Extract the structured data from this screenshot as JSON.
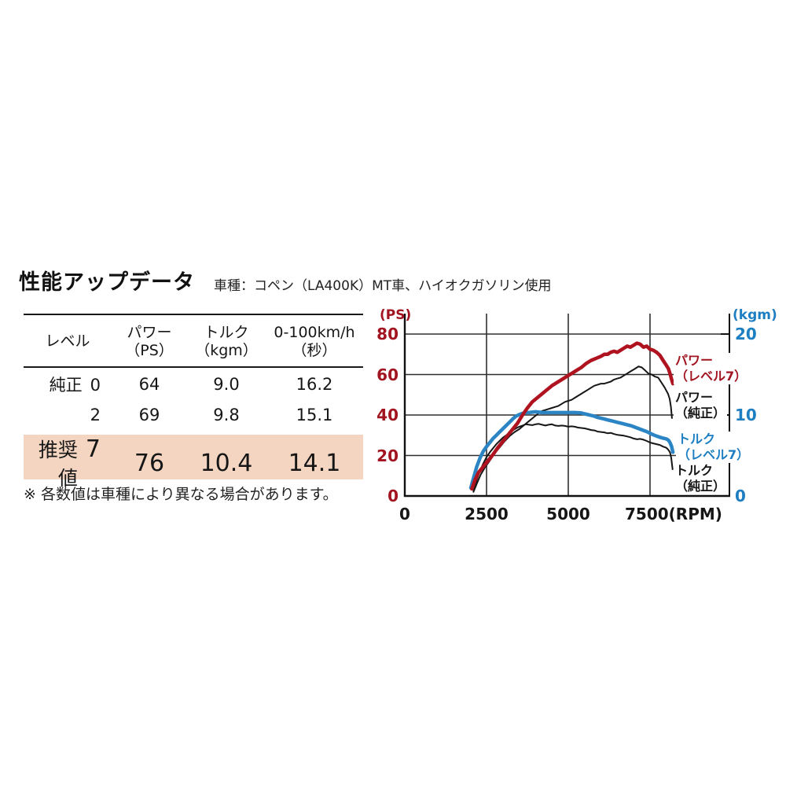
{
  "page": {
    "title": "性能アップデータ",
    "subtitle": "車種：コペン（LA400K）MT車、ハイオクガソリン使用",
    "footnote": "※ 各数値は車種により異なる場合があります。"
  },
  "table": {
    "col_headers": [
      {
        "line1": "レベル",
        "line2": ""
      },
      {
        "line1": "パワー",
        "line2": "（PS）"
      },
      {
        "line1": "トルク",
        "line2": "（kgm）"
      },
      {
        "line1": "0-100km/h",
        "line2": "（秒）"
      }
    ],
    "rows": [
      {
        "label": "純正",
        "level": "0",
        "power": "64",
        "torque": "9.0",
        "accel": "16.2"
      },
      {
        "label": "",
        "level": "2",
        "power": "69",
        "torque": "9.8",
        "accel": "15.1"
      },
      {
        "label": "推奨値",
        "level": "7",
        "power": "76",
        "torque": "10.4",
        "accel": "14.1"
      }
    ],
    "highlight_color": "#f3d5c1"
  },
  "chart_data": {
    "type": "line",
    "x_axis": {
      "ticks": [
        0,
        2500,
        5000,
        7500
      ],
      "tick_labels": [
        "0",
        "2500",
        "5000",
        "7500(RPM)"
      ],
      "range": [
        0,
        9930
      ]
    },
    "left_axis": {
      "label": "(PS)",
      "ticks": [
        0,
        20,
        40,
        60,
        80
      ],
      "range": [
        0,
        89.7
      ],
      "color": "#a11420"
    },
    "right_axis": {
      "label": "(kgm)",
      "ticks": [
        0,
        10,
        20
      ],
      "range": [
        0,
        22.4
      ],
      "color": "#1d7ec2"
    },
    "grid": true,
    "series": [
      {
        "name": "パワー（純正）",
        "axis": "left",
        "unit": "PS",
        "color": "#161616",
        "width": 2,
        "points": [
          [
            2100,
            2
          ],
          [
            2200,
            6
          ],
          [
            2320,
            10.5
          ],
          [
            2450,
            14
          ],
          [
            2600,
            17.5
          ],
          [
            2750,
            21
          ],
          [
            2900,
            24
          ],
          [
            3050,
            27
          ],
          [
            3200,
            29.5
          ],
          [
            3350,
            31.5
          ],
          [
            3500,
            33
          ],
          [
            3650,
            35
          ],
          [
            3800,
            37
          ],
          [
            3950,
            39
          ],
          [
            4100,
            41
          ],
          [
            4200,
            42
          ],
          [
            4300,
            42.5
          ],
          [
            4400,
            43
          ],
          [
            4500,
            43.5
          ],
          [
            4600,
            44
          ],
          [
            4700,
            44.5
          ],
          [
            4800,
            45.5
          ],
          [
            4900,
            46.5
          ],
          [
            5000,
            47
          ],
          [
            5100,
            47.5
          ],
          [
            5200,
            48.5
          ],
          [
            5300,
            49.5
          ],
          [
            5400,
            50.5
          ],
          [
            5500,
            51.5
          ],
          [
            5600,
            52.5
          ],
          [
            5700,
            53.5
          ],
          [
            5800,
            54.5
          ],
          [
            5900,
            55
          ],
          [
            6000,
            55.5
          ],
          [
            6100,
            55.5
          ],
          [
            6200,
            56
          ],
          [
            6300,
            56.5
          ],
          [
            6400,
            57.5
          ],
          [
            6500,
            58
          ],
          [
            6600,
            58.5
          ],
          [
            6700,
            59.5
          ],
          [
            6800,
            60.5
          ],
          [
            6900,
            61.5
          ],
          [
            7000,
            62.5
          ],
          [
            7100,
            63.5
          ],
          [
            7150,
            64
          ],
          [
            7250,
            63.5
          ],
          [
            7350,
            62
          ],
          [
            7450,
            60.5
          ],
          [
            7550,
            60
          ],
          [
            7650,
            59
          ],
          [
            7750,
            58.5
          ],
          [
            7850,
            56
          ],
          [
            7950,
            53.5
          ],
          [
            8050,
            50.5
          ],
          [
            8100,
            48
          ],
          [
            8140,
            44
          ],
          [
            8170,
            38.5
          ]
        ]
      },
      {
        "name": "トルク（純正）",
        "axis": "right",
        "unit": "kgm",
        "color": "#161616",
        "width": 2,
        "points": [
          [
            2100,
            0.6
          ],
          [
            2200,
            2.0
          ],
          [
            2300,
            3.1
          ],
          [
            2400,
            4.0
          ],
          [
            2500,
            4.8
          ],
          [
            2600,
            5.4
          ],
          [
            2700,
            5.9
          ],
          [
            2800,
            6.4
          ],
          [
            2900,
            6.8
          ],
          [
            3000,
            7.2
          ],
          [
            3100,
            7.5
          ],
          [
            3200,
            7.8
          ],
          [
            3300,
            8.1
          ],
          [
            3400,
            8.35
          ],
          [
            3500,
            8.55
          ],
          [
            3600,
            8.7
          ],
          [
            3700,
            8.85
          ],
          [
            3800,
            8.8
          ],
          [
            3900,
            8.75
          ],
          [
            4000,
            8.85
          ],
          [
            4100,
            8.9
          ],
          [
            4200,
            8.8
          ],
          [
            4300,
            8.7
          ],
          [
            4400,
            8.8
          ],
          [
            4500,
            8.85
          ],
          [
            4600,
            8.7
          ],
          [
            4700,
            8.65
          ],
          [
            4800,
            8.7
          ],
          [
            4900,
            8.65
          ],
          [
            5000,
            8.55
          ],
          [
            5100,
            8.6
          ],
          [
            5200,
            8.55
          ],
          [
            5300,
            8.45
          ],
          [
            5400,
            8.4
          ],
          [
            5500,
            8.35
          ],
          [
            5600,
            8.25
          ],
          [
            5700,
            8.15
          ],
          [
            5800,
            8.1
          ],
          [
            5900,
            7.95
          ],
          [
            6000,
            7.9
          ],
          [
            6100,
            7.85
          ],
          [
            6200,
            7.75
          ],
          [
            6300,
            7.8
          ],
          [
            6400,
            7.65
          ],
          [
            6500,
            7.55
          ],
          [
            6600,
            7.5
          ],
          [
            6700,
            7.45
          ],
          [
            6800,
            7.35
          ],
          [
            6900,
            7.25
          ],
          [
            7000,
            7.1
          ],
          [
            7100,
            7.0
          ],
          [
            7200,
            7.05
          ],
          [
            7300,
            6.95
          ],
          [
            7400,
            6.8
          ],
          [
            7500,
            6.6
          ],
          [
            7600,
            6.5
          ],
          [
            7700,
            6.4
          ],
          [
            7800,
            6.3
          ],
          [
            7900,
            6.1
          ],
          [
            8000,
            5.95
          ],
          [
            8060,
            5.7
          ],
          [
            8110,
            5.4
          ],
          [
            8150,
            4.7
          ],
          [
            8190,
            3.3
          ]
        ]
      },
      {
        "name": "トルク（レベル7）",
        "axis": "right",
        "unit": "kgm",
        "color": "#2b85c4",
        "width": 4.5,
        "points": [
          [
            2020,
            1.0
          ],
          [
            2100,
            2.2
          ],
          [
            2200,
            3.6
          ],
          [
            2300,
            4.7
          ],
          [
            2400,
            5.5
          ],
          [
            2500,
            6.1
          ],
          [
            2600,
            6.6
          ],
          [
            2700,
            7.1
          ],
          [
            2800,
            7.5
          ],
          [
            2900,
            7.9
          ],
          [
            3000,
            8.3
          ],
          [
            3100,
            8.7
          ],
          [
            3200,
            9.1
          ],
          [
            3300,
            9.5
          ],
          [
            3400,
            9.85
          ],
          [
            3500,
            10.05
          ],
          [
            3600,
            10.2
          ],
          [
            3700,
            10.3
          ],
          [
            3800,
            10.3
          ],
          [
            3900,
            10.35
          ],
          [
            4000,
            10.4
          ],
          [
            4100,
            10.35
          ],
          [
            4200,
            10.3
          ],
          [
            4400,
            10.3
          ],
          [
            4600,
            10.3
          ],
          [
            4800,
            10.3
          ],
          [
            5000,
            10.3
          ],
          [
            5200,
            10.3
          ],
          [
            5400,
            10.25
          ],
          [
            5500,
            10.15
          ],
          [
            5600,
            10.05
          ],
          [
            5700,
            9.95
          ],
          [
            5800,
            9.85
          ],
          [
            5900,
            9.7
          ],
          [
            6000,
            9.6
          ],
          [
            6100,
            9.5
          ],
          [
            6200,
            9.4
          ],
          [
            6300,
            9.3
          ],
          [
            6400,
            9.2
          ],
          [
            6500,
            9.1
          ],
          [
            6600,
            9.0
          ],
          [
            6700,
            8.9
          ],
          [
            6800,
            8.8
          ],
          [
            6900,
            8.7
          ],
          [
            7000,
            8.55
          ],
          [
            7100,
            8.4
          ],
          [
            7200,
            8.25
          ],
          [
            7300,
            8.1
          ],
          [
            7400,
            7.95
          ],
          [
            7500,
            7.75
          ],
          [
            7600,
            7.55
          ],
          [
            7700,
            7.4
          ],
          [
            7800,
            7.25
          ],
          [
            7900,
            7.15
          ],
          [
            8000,
            7.05
          ],
          [
            8060,
            6.9
          ],
          [
            8110,
            6.6
          ],
          [
            8160,
            6.1
          ],
          [
            8200,
            5.4
          ]
        ]
      },
      {
        "name": "パワー（レベル7）",
        "axis": "left",
        "unit": "PS",
        "color": "#b01320",
        "width": 4.5,
        "points": [
          [
            2050,
            3.5
          ],
          [
            2150,
            8
          ],
          [
            2250,
            11.5
          ],
          [
            2400,
            14.5
          ],
          [
            2550,
            17.5
          ],
          [
            2700,
            20.5
          ],
          [
            2850,
            24
          ],
          [
            3000,
            27
          ],
          [
            3150,
            30
          ],
          [
            3300,
            33
          ],
          [
            3450,
            36
          ],
          [
            3600,
            40
          ],
          [
            3750,
            43.5
          ],
          [
            3900,
            46.5
          ],
          [
            4050,
            48.5
          ],
          [
            4200,
            50.5
          ],
          [
            4350,
            52.5
          ],
          [
            4500,
            54.5
          ],
          [
            4650,
            56
          ],
          [
            4800,
            57.5
          ],
          [
            4950,
            59
          ],
          [
            5100,
            60.5
          ],
          [
            5250,
            62
          ],
          [
            5400,
            63.5
          ],
          [
            5550,
            65.5
          ],
          [
            5700,
            67
          ],
          [
            5850,
            68
          ],
          [
            6000,
            69
          ],
          [
            6100,
            70
          ],
          [
            6200,
            70
          ],
          [
            6300,
            71
          ],
          [
            6400,
            71.5
          ],
          [
            6500,
            71
          ],
          [
            6600,
            72
          ],
          [
            6700,
            73
          ],
          [
            6800,
            74
          ],
          [
            6900,
            73.5
          ],
          [
            7000,
            74.5
          ],
          [
            7100,
            75.5
          ],
          [
            7200,
            75
          ],
          [
            7300,
            73.5
          ],
          [
            7400,
            74
          ],
          [
            7500,
            72.5
          ],
          [
            7600,
            72
          ],
          [
            7700,
            71
          ],
          [
            7800,
            69.5
          ],
          [
            7900,
            67
          ],
          [
            8000,
            64.5
          ],
          [
            8060,
            63
          ],
          [
            8110,
            60.5
          ],
          [
            8160,
            57.5
          ],
          [
            8200,
            55.5
          ]
        ]
      }
    ],
    "legend": [
      {
        "line1": "パワー",
        "line2": "（レベル7）",
        "color": "#a11420"
      },
      {
        "line1": "パワー",
        "line2": "（純正）",
        "color": "#161616"
      },
      {
        "line1": "トルク",
        "line2": "（レベル7）",
        "color": "#1d7ec2"
      },
      {
        "line1": "トルク",
        "line2": "（純正）",
        "color": "#161616"
      }
    ]
  }
}
